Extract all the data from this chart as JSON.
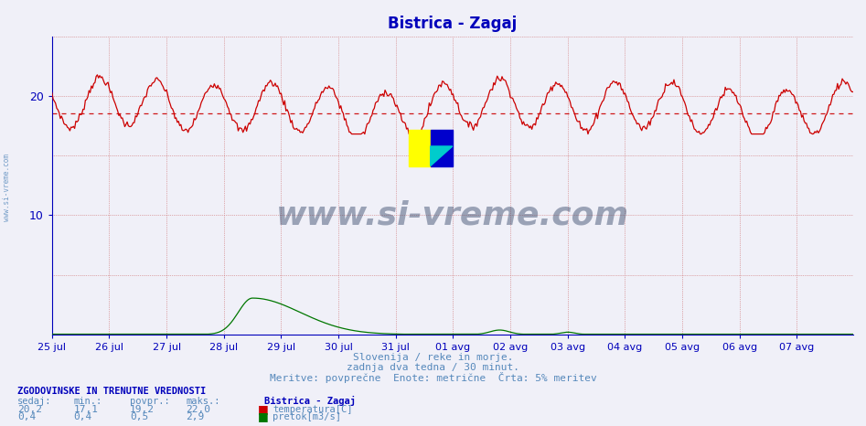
{
  "title": "Bistrica - Zagaj",
  "title_color": "#0000bb",
  "bg_color": "#f0f0f8",
  "plot_bg_color": "#f0f0f8",
  "temp_min": 17.1,
  "temp_max": 22.0,
  "temp_avg": 19.2,
  "temp_current": 20.2,
  "flow_min": 0.4,
  "flow_max": 2.9,
  "flow_avg": 0.5,
  "flow_current": 0.4,
  "temp_color": "#cc0000",
  "flow_color": "#007700",
  "avg_line_color": "#cc0000",
  "axis_color": "#0000bb",
  "tick_color": "#0000bb",
  "subtitle1": "Slovenija / reke in morje.",
  "subtitle2": "zadnja dva tedna / 30 minut.",
  "subtitle3": "Meritve: povprečne  Enote: metrične  Črta: 5% meritev",
  "subtitle_color": "#5588bb",
  "watermark": "www.si-vreme.com",
  "watermark_color": "#334466",
  "footer_header": "ZGODOVINSKE IN TRENUTNE VREDNOSTI",
  "footer_color": "#0000bb",
  "x_labels": [
    "25 jul",
    "26 jul",
    "27 jul",
    "28 jul",
    "29 jul",
    "30 jul",
    "31 jul",
    "01 avg",
    "02 avg",
    "03 avg",
    "04 avg",
    "05 avg",
    "06 avg",
    "07 avg"
  ],
  "ylim": [
    0,
    25
  ],
  "yticks": [
    10,
    20
  ],
  "num_points": 672,
  "figsize": [
    9.47,
    4.66
  ],
  "dpi": 100,
  "flow_scale": 1.05,
  "avg_line_y": 18.5
}
